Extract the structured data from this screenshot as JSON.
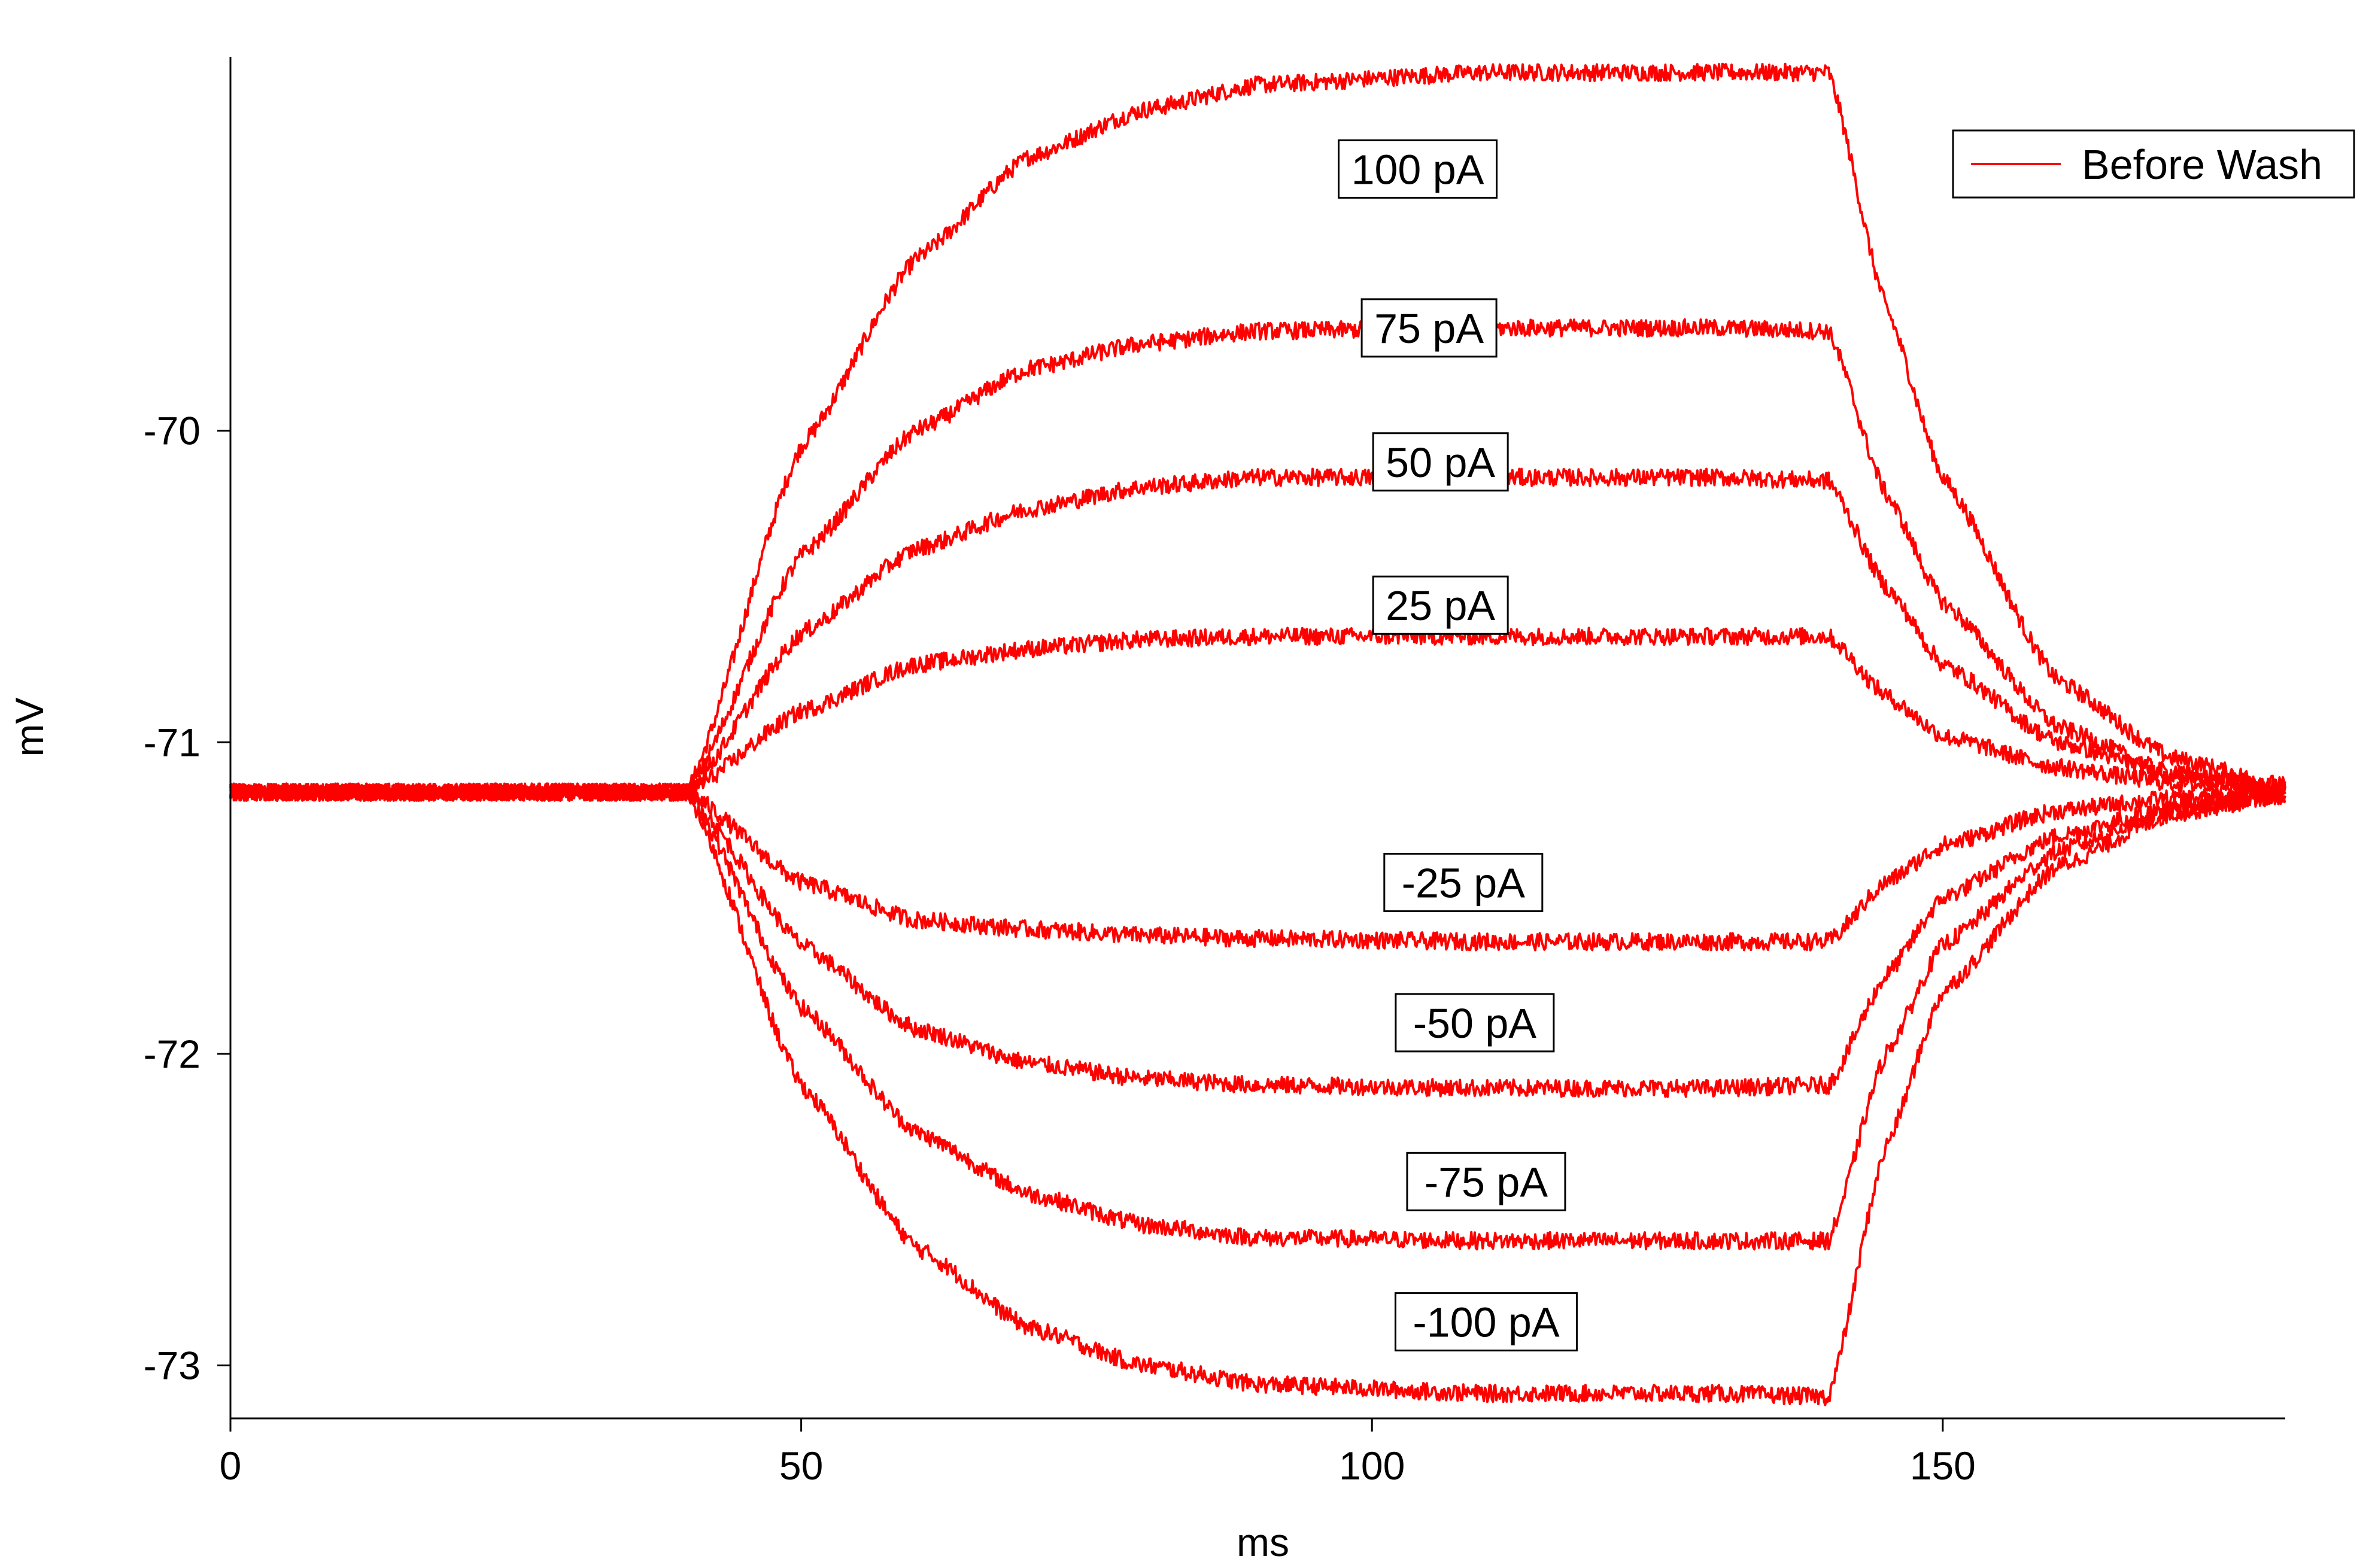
{
  "chart_data": {
    "type": "line",
    "title": "",
    "xlabel": "ms",
    "ylabel": "mV",
    "xlim": [
      0,
      180
    ],
    "ylim": [
      -73.17,
      -68.8
    ],
    "xticks": [
      0,
      50,
      100,
      150
    ],
    "yticks": [
      -70,
      -71,
      -72,
      -73
    ],
    "grid": false,
    "legend": {
      "placement": "top-right",
      "entries": [
        {
          "name": "Before Wash",
          "color": "#ff0000"
        }
      ]
    },
    "color": "#ff0000",
    "baseline_mV": -71.16,
    "step_on_ms": 40,
    "step_off_ms": 140,
    "end_ms": 180,
    "series": [
      {
        "label": "100 pA",
        "x": [
          0,
          40,
          50,
          60,
          70,
          80,
          90,
          110,
          130,
          140,
          145,
          150,
          160,
          170,
          180
        ],
        "y": [
          -71.16,
          -71.16,
          -70.05,
          -69.45,
          -69.12,
          -68.97,
          -68.89,
          -68.85,
          -68.85,
          -68.85,
          -69.6,
          -70.15,
          -70.8,
          -71.05,
          -71.14
        ]
      },
      {
        "label": "75 pA",
        "x": [
          0,
          40,
          50,
          60,
          70,
          80,
          90,
          110,
          130,
          140,
          145,
          150,
          160,
          170,
          180
        ],
        "y": [
          -71.16,
          -71.16,
          -70.4,
          -70.0,
          -69.8,
          -69.72,
          -69.68,
          -69.67,
          -69.67,
          -69.68,
          -70.2,
          -70.55,
          -70.95,
          -71.1,
          -71.15
        ]
      },
      {
        "label": "50 pA",
        "x": [
          0,
          40,
          50,
          60,
          70,
          80,
          90,
          110,
          130,
          140,
          145,
          150,
          160,
          170,
          180
        ],
        "y": [
          -71.16,
          -71.16,
          -70.65,
          -70.38,
          -70.25,
          -70.18,
          -70.15,
          -70.15,
          -70.15,
          -70.16,
          -70.5,
          -70.75,
          -71.0,
          -71.1,
          -71.15
        ]
      },
      {
        "label": "25 pA",
        "x": [
          0,
          40,
          50,
          60,
          70,
          80,
          90,
          110,
          130,
          140,
          145,
          150,
          160,
          170,
          180
        ],
        "y": [
          -71.16,
          -71.16,
          -70.9,
          -70.75,
          -70.7,
          -70.67,
          -70.66,
          -70.66,
          -70.66,
          -70.66,
          -70.85,
          -70.98,
          -71.08,
          -71.13,
          -71.16
        ]
      },
      {
        "label": "-25 pA",
        "x": [
          0,
          40,
          50,
          60,
          70,
          80,
          90,
          110,
          130,
          140,
          145,
          150,
          160,
          170,
          180
        ],
        "y": [
          -71.16,
          -71.16,
          -71.45,
          -71.57,
          -71.6,
          -71.62,
          -71.63,
          -71.64,
          -71.64,
          -71.64,
          -71.45,
          -71.33,
          -71.22,
          -71.18,
          -71.17
        ]
      },
      {
        "label": "-50 pA",
        "x": [
          0,
          40,
          50,
          60,
          70,
          80,
          90,
          110,
          130,
          140,
          145,
          150,
          160,
          170,
          180
        ],
        "y": [
          -71.16,
          -71.16,
          -71.65,
          -71.92,
          -72.03,
          -72.08,
          -72.1,
          -72.11,
          -72.11,
          -72.1,
          -71.75,
          -71.5,
          -71.3,
          -71.21,
          -71.17
        ]
      },
      {
        "label": "-75 pA",
        "x": [
          0,
          40,
          50,
          60,
          70,
          80,
          90,
          110,
          130,
          140,
          145,
          150,
          160,
          170,
          180
        ],
        "y": [
          -71.16,
          -71.16,
          -71.85,
          -72.25,
          -72.45,
          -72.55,
          -72.59,
          -72.6,
          -72.6,
          -72.6,
          -72.0,
          -71.65,
          -71.35,
          -71.22,
          -71.17
        ]
      },
      {
        "label": "-100 pA",
        "x": [
          0,
          40,
          50,
          60,
          70,
          80,
          90,
          110,
          130,
          140,
          145,
          150,
          160,
          170,
          180
        ],
        "y": [
          -71.16,
          -71.16,
          -72.1,
          -72.62,
          -72.88,
          -73.0,
          -73.06,
          -73.09,
          -73.09,
          -73.1,
          -72.3,
          -71.8,
          -71.4,
          -71.23,
          -71.17
        ]
      }
    ],
    "labels": [
      {
        "text": "100 pA",
        "x": 104,
        "y": -69.16
      },
      {
        "text": "75 pA",
        "x": 105,
        "y": -69.67
      },
      {
        "text": "50 pA",
        "x": 106,
        "y": -70.1
      },
      {
        "text": "25 pA",
        "x": 106,
        "y": -70.56
      },
      {
        "text": "-25 pA",
        "x": 108,
        "y": -71.45
      },
      {
        "text": "-50 pA",
        "x": 109,
        "y": -71.9
      },
      {
        "text": "-75 pA",
        "x": 110,
        "y": -72.41
      },
      {
        "text": "-100 pA",
        "x": 110,
        "y": -72.86
      }
    ]
  }
}
